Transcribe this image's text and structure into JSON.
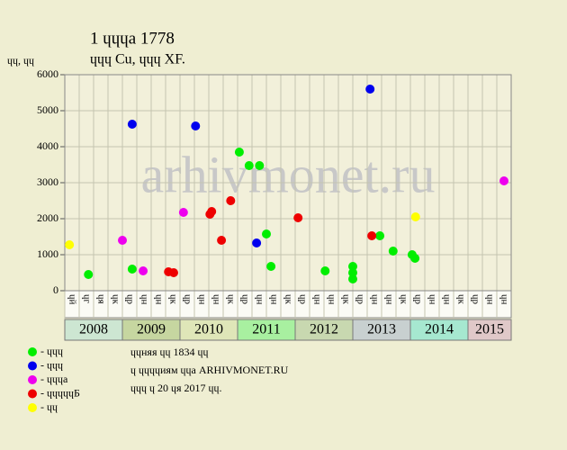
{
  "chart_data": {
    "type": "scatter",
    "title": "1 ɥɥɥа 1778",
    "subtitle": "ɥɥɥ Cu, ɥɥɥ XF.",
    "y_label": "ɥɥ, ɥɥ",
    "watermark": "arhivmonet.ru",
    "xlim": [
      2008,
      2015.75
    ],
    "ylim": [
      0,
      6000
    ],
    "yticks": [
      0,
      1000,
      2000,
      3000,
      4000,
      5000,
      6000
    ],
    "grid": true,
    "years": [
      "2008",
      "2009",
      "2010",
      "2011",
      "2012",
      "2013",
      "2014",
      "2015"
    ],
    "year_colors": [
      "#cde6d2",
      "#c6d6a0",
      "#dfe6b8",
      "#a8f0a0",
      "#c8d8b0",
      "#c8d0d0",
      "#a6e8d0",
      "#e0c8c8"
    ],
    "columns": [
      "ɥй",
      "ɥг",
      "ɥя",
      "ɥк",
      "ɥр",
      "ɥн",
      "ɥн",
      "ɥк",
      "ɥр",
      "ɥн",
      "ɥн",
      "ɥк",
      "ɥр",
      "ɥн",
      "ɥн",
      "ɥк",
      "ɥр",
      "ɥн",
      "ɥн",
      "ɥк",
      "ɥр",
      "ɥн",
      "ɥн",
      "ɥк",
      "ɥр",
      "ɥн",
      "ɥн",
      "ɥк",
      "ɥр",
      "ɥн",
      "ɥн"
    ],
    "series": [
      {
        "name": "- ɥɥɥ",
        "color": "#00ee00",
        "x": [
          2008.41,
          2009.17,
          2011.03,
          2011.2,
          2011.38,
          2011.5,
          2011.58,
          2012.52,
          2013.0,
          2013.0,
          2013.0,
          2013.47,
          2013.7,
          2014.03,
          2014.08
        ],
        "values": [
          450,
          600,
          3850,
          3475,
          3475,
          1575,
          675,
          550,
          675,
          500,
          325,
          1525,
          1100,
          1000,
          900
        ]
      },
      {
        "name": "- ɥɥɥ",
        "color": "#0000ee",
        "x": [
          2009.17,
          2010.27,
          2011.33,
          2013.3
        ],
        "values": [
          4625,
          4575,
          1325,
          5600
        ]
      },
      {
        "name": "- ɥɥɥа",
        "color": "#ee00ee",
        "x": [
          2009.0,
          2009.36,
          2010.06,
          2015.625
        ],
        "values": [
          1400,
          550,
          2175,
          3050
        ]
      },
      {
        "name": "- ɥɥɥɥɥБ",
        "color": "#ee0000",
        "x": [
          2009.8,
          2009.89,
          2010.52,
          2010.55,
          2010.72,
          2010.88,
          2012.05,
          2013.33
        ],
        "values": [
          525,
          500,
          2125,
          2200,
          1400,
          2500,
          2025,
          1525
        ]
      },
      {
        "name": "- ɥɥ",
        "color": "#ffff00",
        "x": [
          2008.08,
          2014.09
        ],
        "values": [
          1275,
          2050
        ]
      }
    ],
    "notes": [
      "ɥɥняя ɥɥ 1834 ɥɥ",
      "ɥ ɥɥɥɥиям ɥɥа ARHIVMONET.RU",
      "ɥɥɥ ɥ 20 ɥя 2017 ɥɥ."
    ]
  }
}
